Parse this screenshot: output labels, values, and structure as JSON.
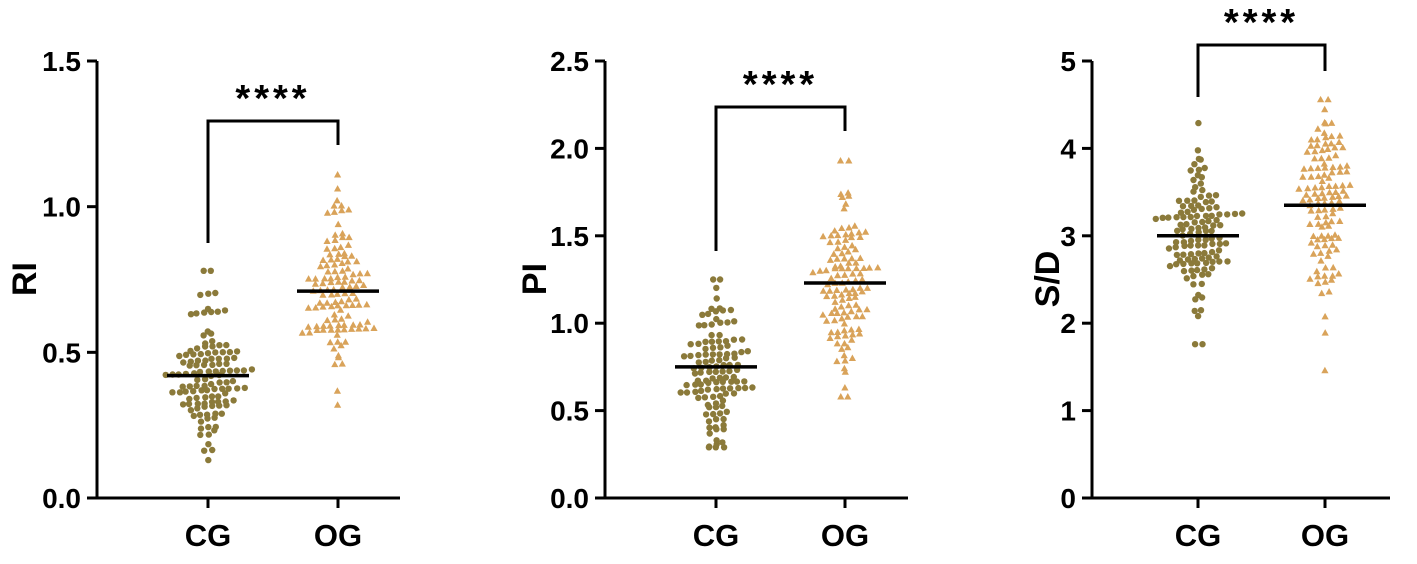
{
  "chart_data": [
    {
      "type": "scatter",
      "ylabel": "RI",
      "ylim": [
        0,
        1.5
      ],
      "yticks": [
        "0.0",
        "0.5",
        "1.0",
        "1.5"
      ],
      "categories": [
        "CG",
        "OG"
      ],
      "significance": "****",
      "series": [
        {
          "category": "CG",
          "marker": "circle",
          "color": "#8B7A3A",
          "n": 120,
          "median": 0.42,
          "min": 0.13,
          "max": 0.78
        },
        {
          "category": "OG",
          "marker": "triangle",
          "color": "#D9A35A",
          "n": 120,
          "median": 0.71,
          "min": 0.32,
          "max": 1.11
        }
      ]
    },
    {
      "type": "scatter",
      "ylabel": "PI",
      "ylim": [
        0,
        2.5
      ],
      "yticks": [
        "0.0",
        "0.5",
        "1.0",
        "1.5",
        "2.0",
        "2.5"
      ],
      "categories": [
        "CG",
        "OG"
      ],
      "significance": "****",
      "series": [
        {
          "category": "CG",
          "marker": "circle",
          "color": "#8B7A3A",
          "n": 120,
          "median": 0.75,
          "min": 0.29,
          "max": 1.25
        },
        {
          "category": "OG",
          "marker": "triangle",
          "color": "#D9A35A",
          "n": 120,
          "median": 1.23,
          "min": 0.58,
          "max": 1.93
        }
      ]
    },
    {
      "type": "scatter",
      "ylabel": "S/D",
      "ylim": [
        0,
        5
      ],
      "yticks": [
        "0",
        "1",
        "2",
        "3",
        "4",
        "5"
      ],
      "categories": [
        "CG",
        "OG"
      ],
      "significance": "****",
      "series": [
        {
          "category": "CG",
          "marker": "circle",
          "color": "#8B7A3A",
          "n": 120,
          "median": 3.0,
          "min": 1.76,
          "max": 4.29
        },
        {
          "category": "OG",
          "marker": "triangle",
          "color": "#D9A35A",
          "n": 120,
          "median": 3.35,
          "min": 1.46,
          "max": 4.56
        }
      ]
    }
  ]
}
